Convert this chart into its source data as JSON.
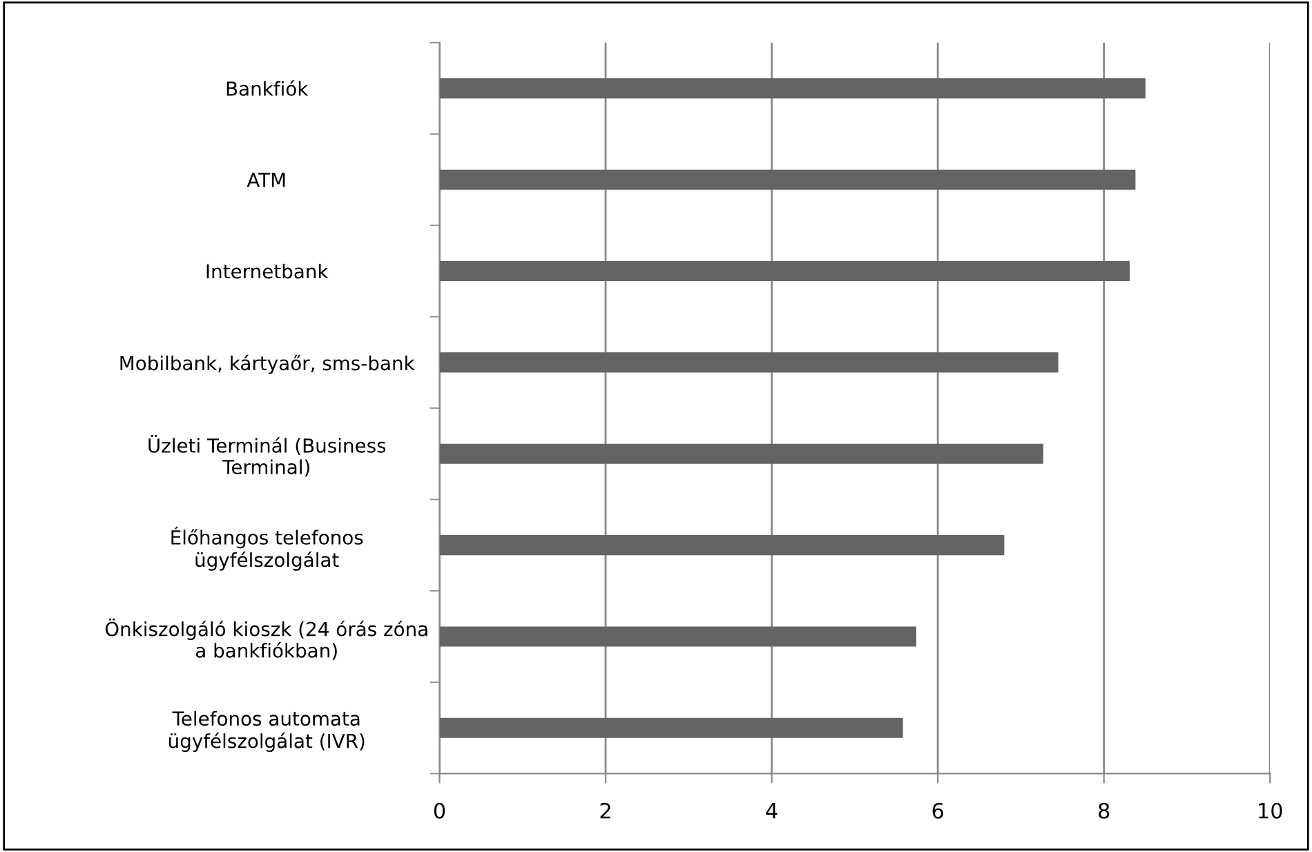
{
  "chart_data": {
    "type": "bar",
    "orientation": "horizontal",
    "categories": [
      "Bankfiók",
      "ATM",
      "Internetbank",
      "Mobilbank, kártyaőr, sms-bank",
      "Üzleti Terminál (Business\nTerminal)",
      "Élőhangos telefonos\nügyfélszolgálat",
      "Önkiszolgáló kioszk (24 órás zóna\na bankfiókban)",
      "Telefonos automata\nügyfélszolgálat (IVR)"
    ],
    "values": [
      8.5,
      8.38,
      8.31,
      7.45,
      7.27,
      6.8,
      5.74,
      5.58
    ],
    "color": "#646464",
    "xlim": [
      0,
      10
    ],
    "xticks": [
      0,
      2,
      4,
      6,
      8,
      10
    ],
    "grid": "x",
    "legend": false
  }
}
